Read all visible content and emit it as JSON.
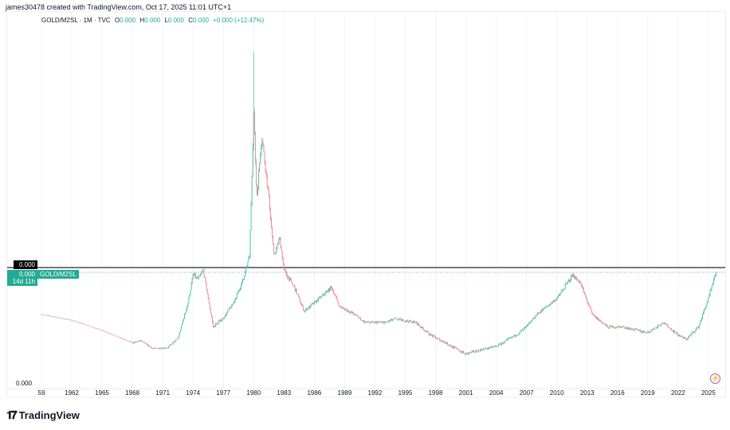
{
  "header": {
    "credit": "james30478 created with TradingView.com, Oct 17, 2025 11:01 UTC+1"
  },
  "legend": {
    "symbol": "GOLD/M2SL · 1M · TVC",
    "o_label": "O",
    "o": "0.000",
    "h_label": "H",
    "h": "0.000",
    "l_label": "L",
    "l": "0.000",
    "c_label": "C",
    "c": "0.000",
    "change": "+0.000 (+12.47%)"
  },
  "price_scale": {
    "top_label": "0.000",
    "current_price": "0.000",
    "countdown": "14d 11h",
    "bottom_label": "0.000",
    "series_tag": "GOLD/M2SL"
  },
  "brand": {
    "name": "TradingView"
  },
  "icons": {
    "lightning": "lightning-icon",
    "logo": "tradingview-logo"
  },
  "colors": {
    "up": "#4cbfa3",
    "down": "#ec8a8f",
    "current_line": "#22ab94",
    "hline": "#4a4a4a"
  },
  "chart_data": {
    "type": "candlestick",
    "title": "GOLD/M2SL · 1M · TVC",
    "interval": "1M",
    "xlabel": "",
    "ylabel": "",
    "x_ticks": [
      "59",
      "1962",
      "1965",
      "1968",
      "1971",
      "1974",
      "1977",
      "1980",
      "1983",
      "1986",
      "1989",
      "1992",
      "1995",
      "1998",
      "2001",
      "2004",
      "2007",
      "2010",
      "2013",
      "2016",
      "2019",
      "2022",
      "2025"
    ],
    "y_ticks": [
      "0.000"
    ],
    "grid": true,
    "path": [
      {
        "x": 1959,
        "y": 0.63
      },
      {
        "x": 1962,
        "y": 0.58
      },
      {
        "x": 1965,
        "y": 0.49
      },
      {
        "x": 1968,
        "y": 0.38
      },
      {
        "x": 1968.8,
        "y": 0.4
      },
      {
        "x": 1970,
        "y": 0.33
      },
      {
        "x": 1971.5,
        "y": 0.34
      },
      {
        "x": 1972.5,
        "y": 0.42
      },
      {
        "x": 1973.5,
        "y": 0.73
      },
      {
        "x": 1974,
        "y": 0.98
      },
      {
        "x": 1974.5,
        "y": 0.94
      },
      {
        "x": 1975,
        "y": 1.02
      },
      {
        "x": 1976,
        "y": 0.52
      },
      {
        "x": 1977,
        "y": 0.6
      },
      {
        "x": 1978,
        "y": 0.73
      },
      {
        "x": 1979,
        "y": 0.94
      },
      {
        "x": 1979.6,
        "y": 1.15
      },
      {
        "x": 1980,
        "y": 2.4
      },
      {
        "x": 1980.3,
        "y": 1.65
      },
      {
        "x": 1980.8,
        "y": 2.2
      },
      {
        "x": 1981.5,
        "y": 1.65
      },
      {
        "x": 1982,
        "y": 1.15
      },
      {
        "x": 1982.6,
        "y": 1.3
      },
      {
        "x": 1983,
        "y": 1.02
      },
      {
        "x": 1984,
        "y": 0.87
      },
      {
        "x": 1985,
        "y": 0.66
      },
      {
        "x": 1986,
        "y": 0.73
      },
      {
        "x": 1987.7,
        "y": 0.87
      },
      {
        "x": 1988.5,
        "y": 0.7
      },
      {
        "x": 1990,
        "y": 0.63
      },
      {
        "x": 1991,
        "y": 0.56
      },
      {
        "x": 1993,
        "y": 0.56
      },
      {
        "x": 1994,
        "y": 0.59
      },
      {
        "x": 1996,
        "y": 0.56
      },
      {
        "x": 1997.5,
        "y": 0.45
      },
      {
        "x": 1999,
        "y": 0.38
      },
      {
        "x": 2001,
        "y": 0.28
      },
      {
        "x": 2002,
        "y": 0.31
      },
      {
        "x": 2004,
        "y": 0.35
      },
      {
        "x": 2006,
        "y": 0.45
      },
      {
        "x": 2007,
        "y": 0.52
      },
      {
        "x": 2008,
        "y": 0.63
      },
      {
        "x": 2009,
        "y": 0.7
      },
      {
        "x": 2010,
        "y": 0.77
      },
      {
        "x": 2011.6,
        "y": 0.98
      },
      {
        "x": 2012.3,
        "y": 0.91
      },
      {
        "x": 2013.5,
        "y": 0.63
      },
      {
        "x": 2015,
        "y": 0.52
      },
      {
        "x": 2016.5,
        "y": 0.52
      },
      {
        "x": 2018,
        "y": 0.49
      },
      {
        "x": 2019,
        "y": 0.47
      },
      {
        "x": 2020.5,
        "y": 0.56
      },
      {
        "x": 2022,
        "y": 0.45
      },
      {
        "x": 2022.8,
        "y": 0.41
      },
      {
        "x": 2024,
        "y": 0.52
      },
      {
        "x": 2025,
        "y": 0.77
      },
      {
        "x": 2025.75,
        "y": 1.0
      }
    ],
    "spike_high": {
      "x": 1980,
      "y": 2.94
    }
  }
}
